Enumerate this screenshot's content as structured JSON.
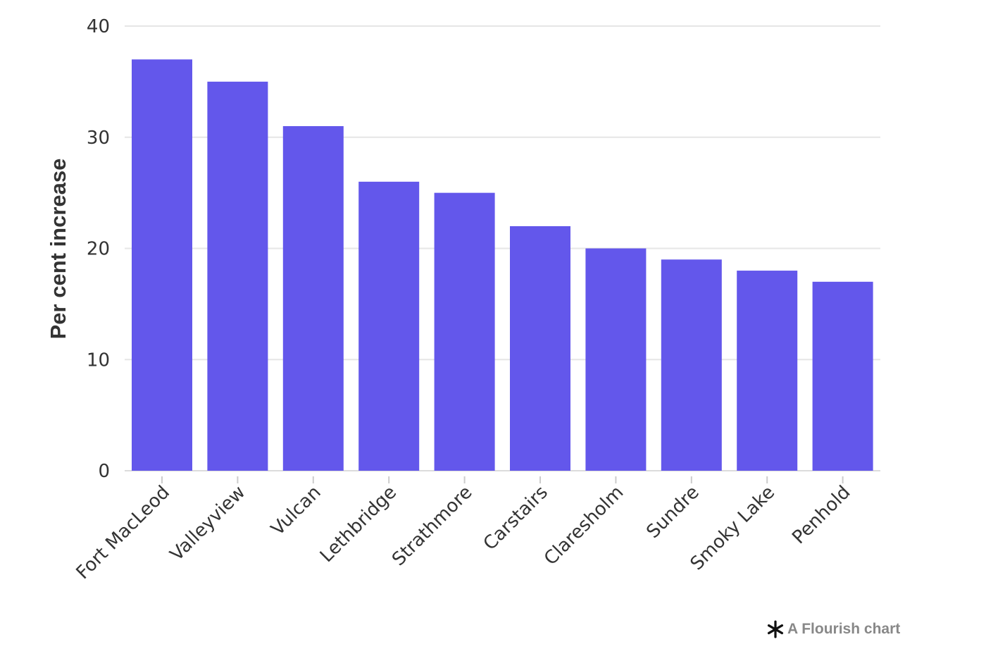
{
  "chart_data": {
    "type": "bar",
    "categories": [
      "Fort MacLeod",
      "Valleyview",
      "Vulcan",
      "Lethbridge",
      "Strathmore",
      "Carstairs",
      "Claresholm",
      "Sundre",
      "Smoky Lake",
      "Penhold"
    ],
    "values": [
      37,
      35,
      31,
      26,
      25,
      22,
      20,
      19,
      18,
      17
    ],
    "ylabel": "Per cent increase",
    "ylim": [
      0,
      40
    ],
    "yticks": [
      0,
      10,
      20,
      30,
      40
    ],
    "grid": true,
    "bar_color": "#6357EB"
  },
  "credit": {
    "text": "A Flourish chart",
    "icon": "flourish-asterisk-icon"
  }
}
